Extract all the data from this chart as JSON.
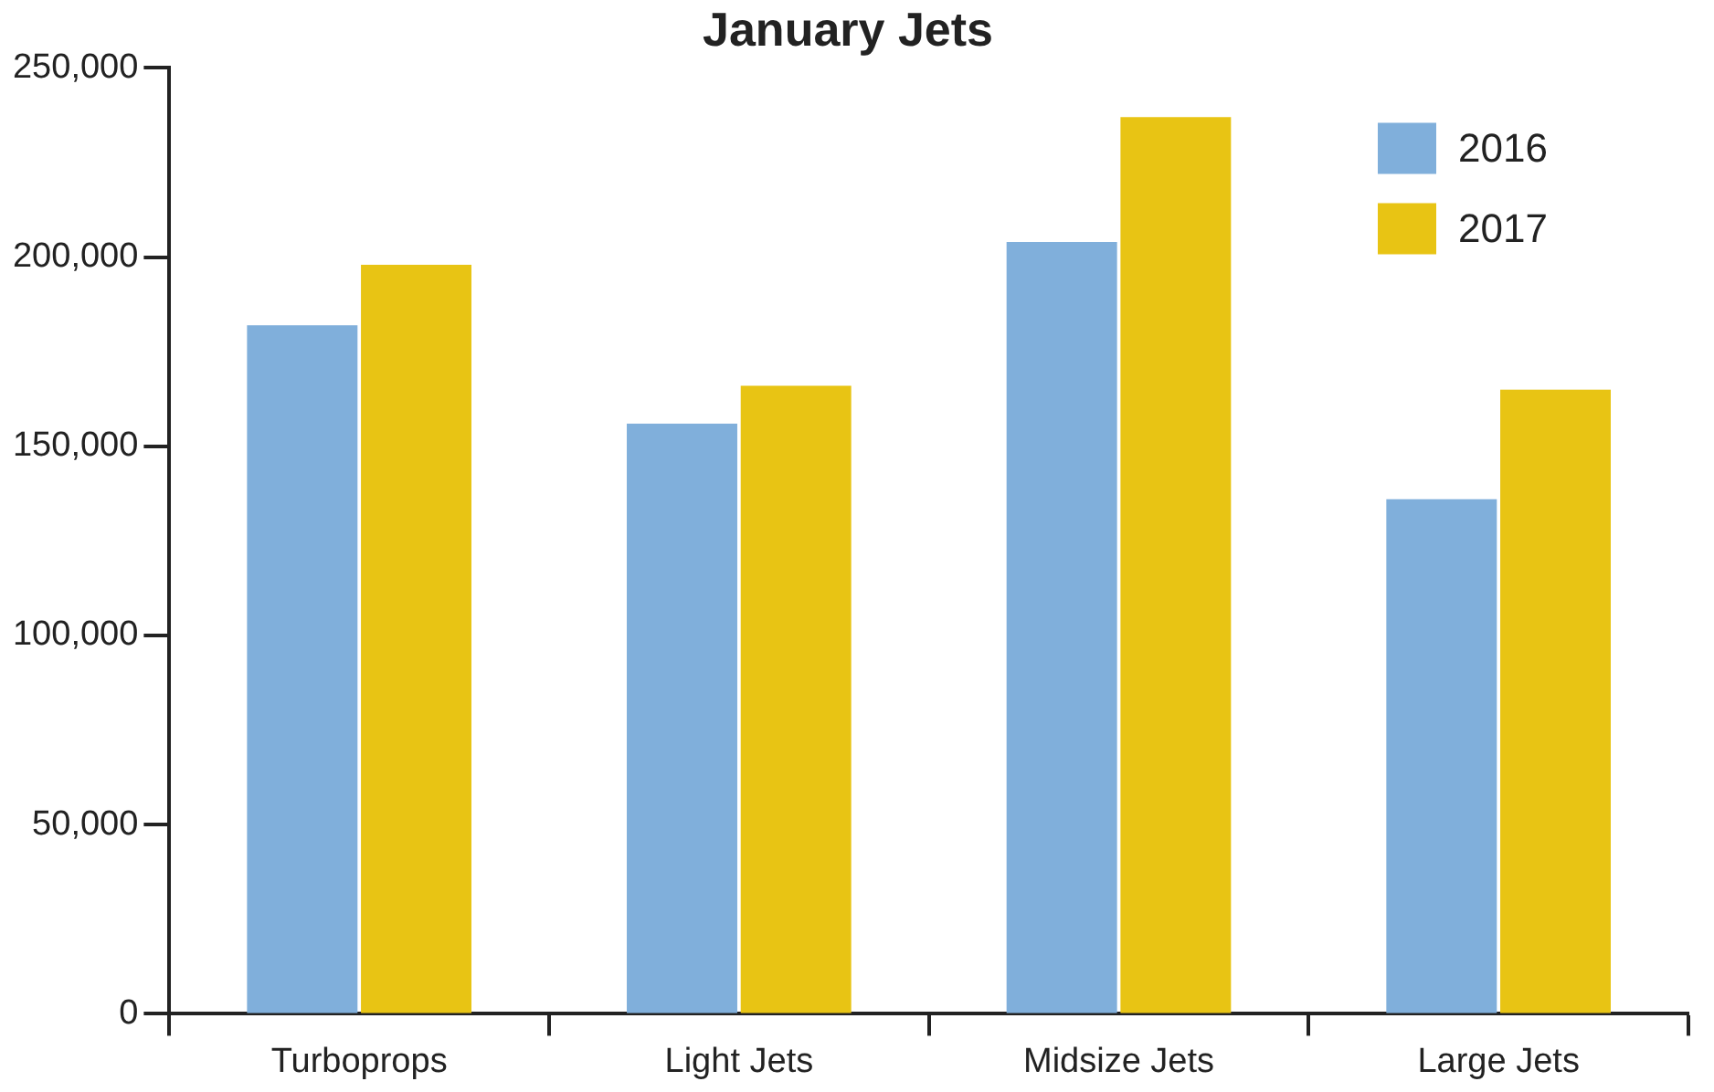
{
  "chart_data": {
    "type": "bar",
    "title": "January Jets",
    "categories": [
      "Turboprops",
      "Light Jets",
      "Midsize Jets",
      "Large Jets"
    ],
    "series": [
      {
        "name": "2016",
        "color": "#80afdb",
        "values": [
          182000,
          156000,
          204000,
          136000
        ]
      },
      {
        "name": "2017",
        "color": "#e8c414",
        "values": [
          198000,
          166000,
          237000,
          165000
        ]
      }
    ],
    "ylim": [
      0,
      250000
    ],
    "yticks": [
      {
        "value": 0,
        "label": "0"
      },
      {
        "value": 50000,
        "label": "50,000"
      },
      {
        "value": 100000,
        "label": "100,000"
      },
      {
        "value": 150000,
        "label": "150,000"
      },
      {
        "value": 200000,
        "label": "200,000"
      },
      {
        "value": 250000,
        "label": "250,000"
      }
    ],
    "grid": false,
    "legend": "top right"
  }
}
